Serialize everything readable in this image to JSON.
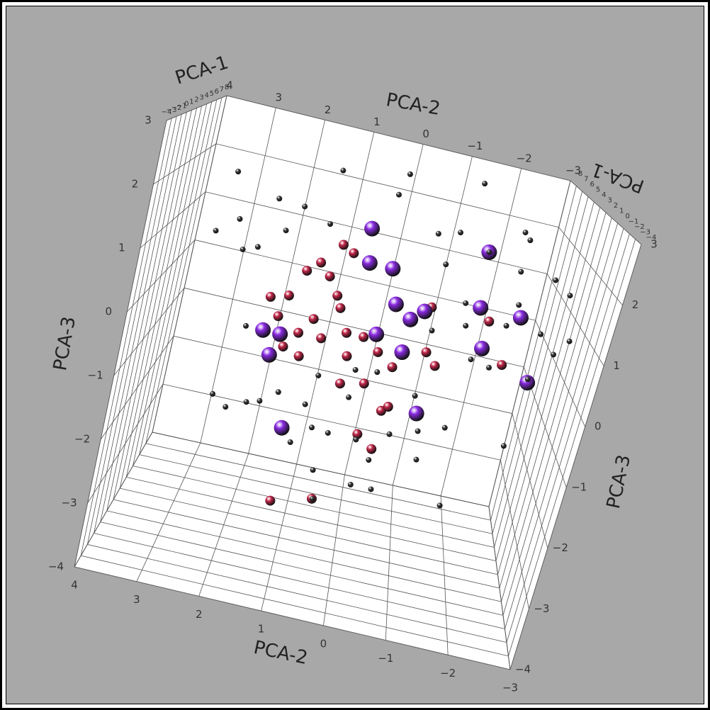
{
  "chart_data": {
    "type": "scatter3d",
    "xlabel": "PCA-1",
    "ylabel": "PCA-2",
    "zlabel": "PCA-3",
    "xlim": [
      -4,
      8
    ],
    "ylim": [
      -3,
      4
    ],
    "zlim": [
      -4,
      3
    ],
    "xticks": [
      {
        "value": -4,
        "label": "−4"
      },
      {
        "value": -3,
        "label": "−3"
      },
      {
        "value": -2,
        "label": "−2"
      },
      {
        "value": -1,
        "label": "−1"
      },
      0,
      1,
      2,
      3,
      4,
      5,
      6,
      7,
      8
    ],
    "yticks": [
      {
        "value": -3,
        "label": "−3"
      },
      {
        "value": -2,
        "label": "−2"
      },
      {
        "value": -1,
        "label": "−1"
      },
      0,
      1,
      2,
      3,
      4
    ],
    "zticks": [
      {
        "value": -4,
        "label": "−4"
      },
      {
        "value": -3,
        "label": "−3"
      },
      {
        "value": -2,
        "label": "−2"
      },
      {
        "value": -1,
        "label": "−1"
      },
      0,
      1,
      2,
      3
    ],
    "grid": true,
    "series": [
      {
        "color": "#c4284a",
        "size": 7,
        "x": [
          2,
          2,
          2,
          2,
          2,
          2,
          2,
          2,
          2,
          2,
          2,
          2,
          2,
          2,
          2,
          2,
          2,
          2,
          2,
          2,
          2,
          2,
          2,
          2,
          2,
          2,
          2,
          2,
          2,
          2,
          2,
          2,
          2
        ],
        "y": [
          2.1,
          1.8,
          1.9,
          1.6,
          1.4,
          1.2,
          1.0,
          0.9,
          1.3,
          1.5,
          1.7,
          1.4,
          1.1,
          0.7,
          0.6,
          0.4,
          0.1,
          -0.2,
          0.2,
          0.6,
          0.9,
          1.1,
          -0.7,
          -0.9,
          -0.2,
          -0.3,
          0.1,
          -0.2,
          1.3,
          0.6,
          -2.0,
          -1.6,
          -0.6
        ],
        "z": [
          0.1,
          0.2,
          -0.2,
          0.7,
          0.9,
          0.7,
          0.4,
          0.2,
          -0.1,
          -0.4,
          -0.7,
          -0.8,
          -0.4,
          -0.2,
          -0.6,
          -0.2,
          -0.4,
          -0.6,
          -1.0,
          -1.1,
          1.2,
          1.3,
          -0.2,
          -0.4,
          -1.4,
          -1.3,
          -1.9,
          -2.1,
          -3.4,
          -3.2,
          -0.1,
          0.6,
          0.6
        ]
      },
      {
        "color": "#8a2be2",
        "size": 11,
        "x": [
          2,
          2,
          2,
          2,
          2,
          2,
          2,
          2,
          2,
          2,
          2,
          2,
          2,
          2,
          2,
          2,
          2,
          2
        ],
        "y": [
          0.7,
          0.6,
          0.2,
          0.0,
          -0.3,
          -0.5,
          2.1,
          1.8,
          1.9,
          1.4,
          -0.8,
          -1.3,
          -1.4,
          -2.1,
          -1.6,
          -2.5,
          -0.3,
          0.2
        ],
        "z": [
          1.7,
          1.1,
          1.1,
          0.5,
          0.3,
          0.5,
          -0.5,
          -0.5,
          -0.9,
          -2.1,
          -1.3,
          1.8,
          0.8,
          0.8,
          0.1,
          -0.3,
          -0.3,
          -0.1
        ]
      },
      {
        "color": "#3a3a3a",
        "size": 4,
        "x": [
          2,
          1,
          3,
          2,
          2,
          3,
          1,
          2,
          2,
          3,
          2,
          1,
          2,
          3,
          2,
          1,
          2,
          2,
          3,
          2,
          1,
          2,
          3,
          2,
          2,
          2,
          1,
          2,
          3,
          2,
          2,
          1,
          2,
          3,
          2,
          2,
          1,
          2,
          3,
          2,
          2,
          1,
          2,
          3,
          2,
          2,
          1,
          2,
          3,
          2,
          2,
          1,
          2,
          3,
          2,
          2,
          1,
          2,
          3,
          2
        ],
        "y": [
          3.1,
          2.3,
          1.4,
          0.3,
          0.4,
          -1.0,
          3.2,
          2.9,
          1.4,
          1.9,
          -0.4,
          -0.7,
          -1.8,
          -2.0,
          -1.3,
          2.7,
          2.5,
          2.1,
          -0.7,
          -1.9,
          -2.4,
          -2.8,
          -2.1,
          -2.5,
          -2.8,
          -3.0,
          -2.4,
          -0.7,
          -1.2,
          2.4,
          2.7,
          2.4,
          2.1,
          1.9,
          1.6,
          1.1,
          0.9,
          0.4,
          0.0,
          0.6,
          0.1,
          -0.4,
          -0.9,
          -1.4,
          -1.0,
          0.7,
          0.6,
          0.0,
          -0.4,
          -1.6,
          -2.4,
          -1.4,
          -1.8,
          1.2,
          -0.2,
          -0.7,
          1.0,
          0.4,
          -1.3,
          -1.9
        ],
        "z": [
          2.1,
          1.9,
          2.5,
          2.8,
          2.4,
          2.9,
          1.1,
          1.3,
          1.6,
          1.7,
          1.9,
          2.1,
          2.3,
          2.1,
          1.8,
          0.9,
          0.9,
          1.3,
          1.3,
          1.6,
          1.7,
          1.4,
          0.9,
          0.6,
          0.3,
          0.6,
          -0.1,
          0.2,
          0.7,
          -0.5,
          -1.8,
          -1.8,
          -1.8,
          -1.9,
          -1.5,
          -1.6,
          -1.8,
          -1.3,
          -0.9,
          -2.0,
          -2.0,
          -1.6,
          -1.6,
          -1.6,
          -2.1,
          -2.7,
          -3.0,
          -2.8,
          -3.0,
          -2.8,
          -1.5,
          0.0,
          -0.2,
          -2.5,
          -2.3,
          -1.0,
          -0.9,
          -0.8,
          0.3,
          0.6
        ]
      }
    ]
  }
}
